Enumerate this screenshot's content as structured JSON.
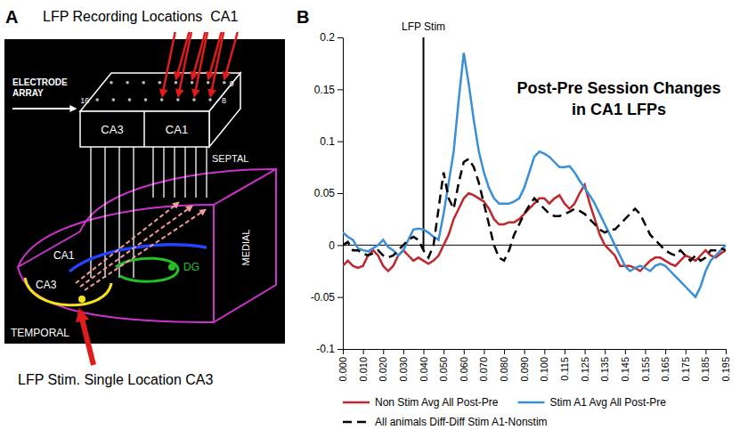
{
  "chart_data": {
    "type": "line",
    "panel_label": "B",
    "title": "Post-Pre Session Changes in CA1 LFPs",
    "categories": [
      "0.000",
      null,
      null,
      null,
      "0.010",
      null,
      null,
      null,
      "0.020",
      null,
      null,
      null,
      "0.030",
      null,
      null,
      null,
      "0.040",
      null,
      null,
      null,
      "0.050",
      null,
      null,
      null,
      "0.060",
      null,
      null,
      null,
      "0.070",
      null,
      null,
      null,
      "0.080",
      null,
      null,
      null,
      "0.090",
      null,
      null,
      null,
      "0.100",
      null,
      null,
      null,
      "0.115",
      null,
      null,
      null,
      "0.125",
      null,
      null,
      null,
      "0.135",
      null,
      null,
      null,
      "0.145",
      null,
      null,
      null,
      "0.155",
      null,
      null,
      null,
      "0.165",
      null,
      null,
      null,
      "0.175",
      null,
      null,
      null,
      "0.185",
      null,
      null,
      null,
      "0.195"
    ],
    "ylim": [
      -0.1,
      0.2
    ],
    "yticks": [
      -0.1,
      -0.05,
      0,
      0.05,
      0.1,
      0.15,
      0.2
    ],
    "grid": false,
    "legend": "bottom",
    "annotations": [
      {
        "text": "LFP Stim",
        "at": 16
      }
    ],
    "series": [
      {
        "name": "Non Stim Avg All Post-Pre",
        "color": "#c0282d",
        "line_style": "solid",
        "values": [
          -0.02,
          -0.015,
          -0.02,
          -0.022,
          -0.02,
          -0.01,
          -0.005,
          -0.01,
          -0.02,
          -0.025,
          -0.02,
          -0.01,
          -0.005,
          -0.01,
          -0.015,
          -0.012,
          -0.015,
          -0.018,
          -0.015,
          -0.01,
          0,
          0.01,
          0.025,
          0.035,
          0.045,
          0.05,
          0.048,
          0.045,
          0.042,
          0.035,
          0.025,
          0.02,
          0.02,
          0.022,
          0.022,
          0.025,
          0.03,
          0.035,
          0.04,
          0.045,
          0.045,
          0.04,
          0.045,
          0.048,
          0.04,
          0.035,
          0.04,
          0.05,
          0.058,
          0.04,
          0.025,
          0.01,
          0,
          -0.005,
          -0.01,
          -0.02,
          -0.02,
          -0.02,
          -0.022,
          -0.025,
          -0.02,
          -0.015,
          -0.012,
          -0.012,
          -0.015,
          -0.018,
          -0.02,
          -0.015,
          -0.01,
          -0.012,
          -0.015,
          -0.01,
          -0.005,
          -0.01,
          -0.012,
          -0.008,
          -0.005
        ]
      },
      {
        "name": "Stim A1 Avg All Post-Pre",
        "color": "#3a8fd6",
        "line_style": "solid",
        "values": [
          0.012,
          0.008,
          0.005,
          -0.003,
          -0.005,
          -0.006,
          -0.003,
          0,
          0.005,
          -0.002,
          -0.005,
          -0.01,
          -0.005,
          0.005,
          0.015,
          0.016,
          0.015,
          0.012,
          0.008,
          0.005,
          0.03,
          0.06,
          0.09,
          0.14,
          0.185,
          0.155,
          0.12,
          0.09,
          0.07,
          0.055,
          0.045,
          0.04,
          0.04,
          0.04,
          0.042,
          0.045,
          0.055,
          0.07,
          0.085,
          0.09,
          0.088,
          0.085,
          0.08,
          0.075,
          0.075,
          0.076,
          0.07,
          0.062,
          0.055,
          0.048,
          0.04,
          0.03,
          0.02,
          0.01,
          0,
          -0.01,
          -0.02,
          -0.025,
          -0.022,
          -0.02,
          -0.022,
          -0.025,
          -0.02,
          -0.018,
          -0.02,
          -0.025,
          -0.03,
          -0.035,
          -0.04,
          -0.045,
          -0.05,
          -0.04,
          -0.025,
          -0.015,
          -0.01,
          -0.005,
          0
        ]
      },
      {
        "name": "All animals Diff-Diff Stim A1-Nonstim",
        "color": "#000000",
        "line_style": "dashed",
        "values": [
          0,
          0.003,
          -0.005,
          -0.005,
          -0.008,
          -0.01,
          -0.008,
          -0.005,
          -0.01,
          -0.012,
          -0.01,
          -0.005,
          0,
          0.005,
          0.008,
          0.005,
          -0.005,
          -0.012,
          0,
          0.035,
          0.07,
          0.045,
          0.035,
          0.06,
          0.08,
          0.083,
          0.075,
          0.06,
          0.04,
          0.02,
          0,
          -0.012,
          -0.015,
          -0.005,
          0.01,
          0.02,
          0.03,
          0.038,
          0.045,
          0.04,
          0.035,
          0.03,
          0.028,
          0.028,
          0.03,
          0.032,
          0.035,
          0.033,
          0.03,
          0.025,
          0.02,
          0.015,
          0.012,
          0.015,
          0.015,
          0.02,
          0.025,
          0.03,
          0.035,
          0.03,
          0.02,
          0.01,
          0.005,
          0,
          -0.005,
          -0.008,
          -0.01,
          -0.005,
          -0.01,
          -0.015,
          -0.01,
          -0.015,
          -0.012,
          -0.005,
          -0.005,
          -0.003,
          -0.005
        ]
      }
    ]
  },
  "diagram": {
    "panel_label": "A",
    "title": "LFP Recording Locations  CA1",
    "stim_label": "LFP Stim. Single Location CA3",
    "array_label": "ELECTRODE ARRAY",
    "array_numbers": [
      "9",
      "16",
      "8"
    ],
    "array_sections": [
      "CA3",
      "CA1"
    ],
    "directions": [
      "SEPTAL",
      "MEDIAL",
      "TEMPORAL"
    ],
    "regions": [
      "CA1",
      "DG",
      "CA3"
    ]
  }
}
